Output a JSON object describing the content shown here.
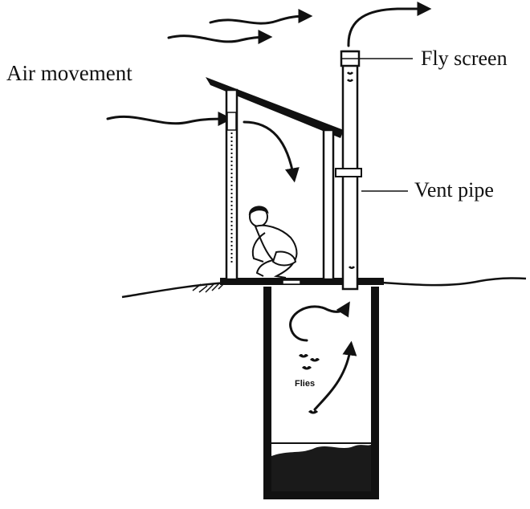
{
  "labels": {
    "air_movement": "Air movement",
    "fly_screen": "Fly screen",
    "vent_pipe": "Vent pipe",
    "flies": "Flies"
  },
  "colors": {
    "ink": "#111111",
    "pit_contents": "#1a1a1a",
    "background": "#ffffff"
  }
}
